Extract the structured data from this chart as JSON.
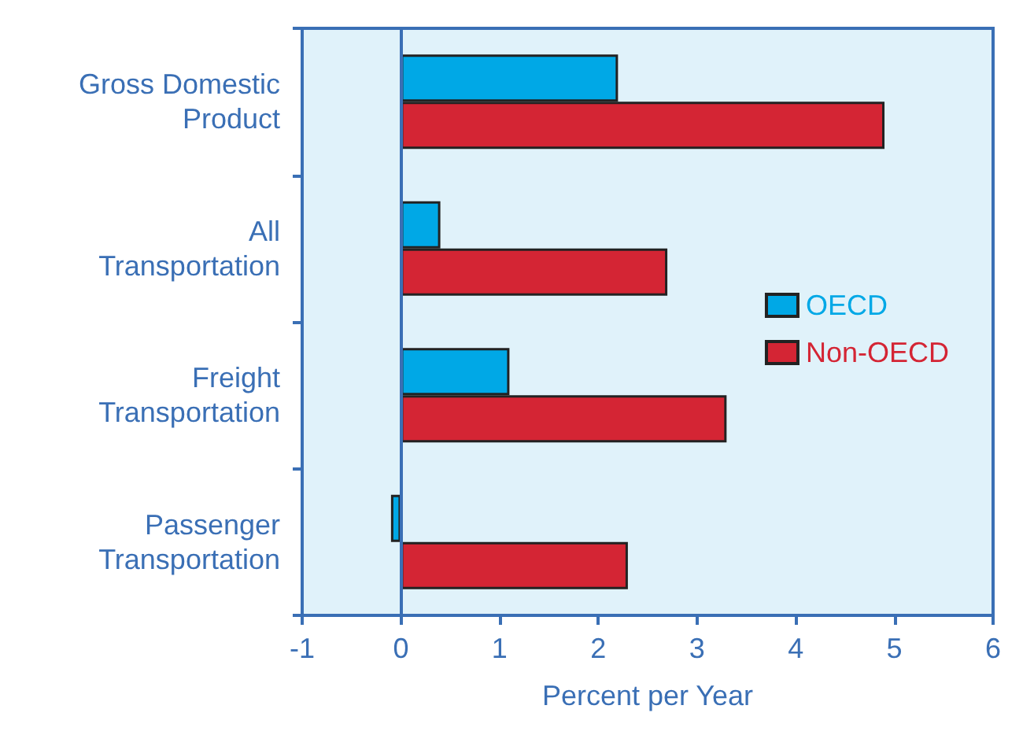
{
  "chart_data": {
    "type": "bar",
    "orientation": "horizontal",
    "xlabel": "Percent per Year",
    "categories": [
      "Gross Domestic\nProduct",
      "All\nTransportation",
      "Freight\nTransportation",
      "Passenger\nTransportation"
    ],
    "series": [
      {
        "name": "OECD",
        "color": "#00a8e6",
        "values": [
          2.2,
          0.4,
          1.1,
          -0.1
        ]
      },
      {
        "name": "Non-OECD",
        "color": "#d42534",
        "values": [
          4.9,
          2.7,
          3.3,
          2.3
        ]
      }
    ],
    "ref_lines": [
      {
        "axis": "x",
        "value": 0,
        "color": "#3a6fb5"
      }
    ],
    "xlim": [
      -1,
      6
    ],
    "xticks": [
      -1,
      0,
      1,
      2,
      3,
      4,
      5,
      6
    ],
    "grid": false,
    "legend": "right"
  }
}
